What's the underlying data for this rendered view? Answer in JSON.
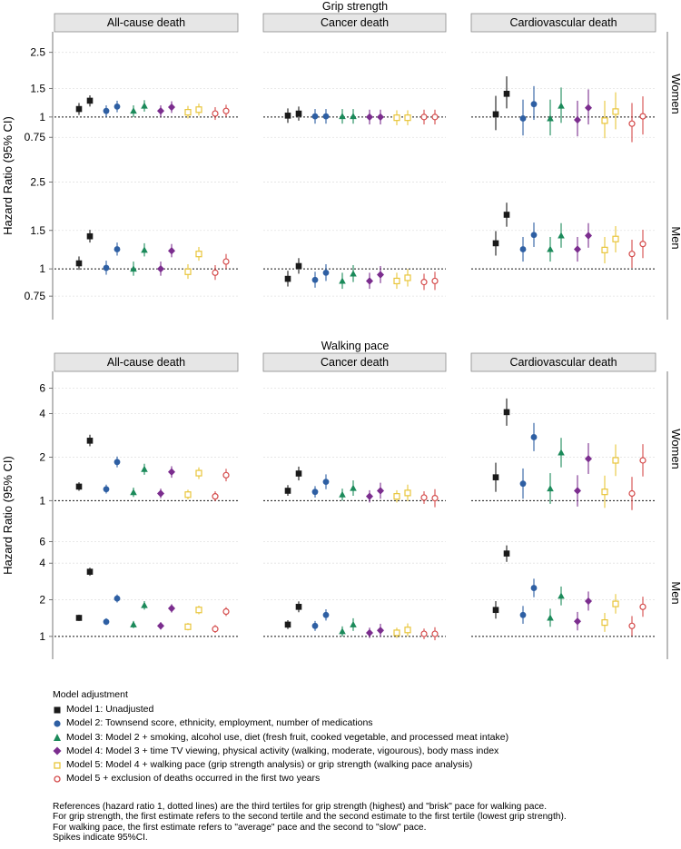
{
  "colors": {
    "model1": "#1a1a1a",
    "model2": "#2e5fa3",
    "model3": "#1b8a5a",
    "model4": "#7b2d8e",
    "model5": "#e8c53a",
    "model5b": "#d44a4a",
    "strip": "#e6e6e6",
    "grid": "#e2e2e2"
  },
  "chart_data": [
    {
      "type": "scatter",
      "title": "Grip strength",
      "ylabel": "Hazard Ratio (95% CI)",
      "yscale": "log",
      "ylim": [
        0.62,
        3.1
      ],
      "yticks": [
        0.75,
        1,
        1.5,
        2.5
      ],
      "ytick_labels": [
        "0.75",
        "1",
        "1.5",
        "2.5"
      ],
      "columns": [
        "All-cause death",
        "Cancer death",
        "Cardiovascular death"
      ],
      "rows": [
        "Women",
        "Men"
      ],
      "cells": [
        [
          [
            [
              1.12,
              1.03,
              1.22
            ],
            [
              1.26,
              1.16,
              1.36
            ],
            [
              1.09,
              1.0,
              1.18
            ],
            [
              1.16,
              1.07,
              1.26
            ],
            [
              1.09,
              1.0,
              1.18
            ],
            [
              1.17,
              1.08,
              1.27
            ],
            [
              1.09,
              1.0,
              1.18
            ],
            [
              1.15,
              1.06,
              1.25
            ],
            [
              1.07,
              0.98,
              1.17
            ],
            [
              1.11,
              1.02,
              1.21
            ],
            [
              1.05,
              0.96,
              1.15
            ],
            [
              1.09,
              1.0,
              1.19
            ]
          ],
          [
            [
              1.02,
              0.92,
              1.13
            ],
            [
              1.05,
              0.95,
              1.16
            ],
            [
              1.01,
              0.91,
              1.12
            ],
            [
              1.01,
              0.91,
              1.12
            ],
            [
              1.01,
              0.91,
              1.12
            ],
            [
              1.01,
              0.91,
              1.12
            ],
            [
              1.0,
              0.9,
              1.11
            ],
            [
              1.0,
              0.9,
              1.11
            ],
            [
              0.99,
              0.89,
              1.1
            ],
            [
              0.99,
              0.89,
              1.1
            ],
            [
              1.0,
              0.9,
              1.11
            ],
            [
              1.0,
              0.9,
              1.11
            ]
          ],
          [
            [
              1.04,
              0.83,
              1.35
            ],
            [
              1.39,
              1.13,
              1.78
            ],
            [
              0.98,
              0.77,
              1.28
            ],
            [
              1.2,
              0.96,
              1.55
            ],
            [
              0.98,
              0.77,
              1.28
            ],
            [
              1.17,
              0.92,
              1.52
            ],
            [
              0.96,
              0.76,
              1.26
            ],
            [
              1.14,
              0.9,
              1.48
            ],
            [
              0.95,
              0.74,
              1.26
            ],
            [
              1.08,
              0.84,
              1.42
            ],
            [
              0.91,
              0.7,
              1.22
            ],
            [
              1.01,
              0.78,
              1.34
            ]
          ]
        ],
        [
          [
            [
              1.06,
              0.99,
              1.14
            ],
            [
              1.41,
              1.32,
              1.51
            ],
            [
              1.01,
              0.94,
              1.09
            ],
            [
              1.23,
              1.15,
              1.32
            ],
            [
              1.0,
              0.93,
              1.08
            ],
            [
              1.22,
              1.14,
              1.31
            ],
            [
              1.0,
              0.93,
              1.08
            ],
            [
              1.21,
              1.13,
              1.3
            ],
            [
              0.97,
              0.9,
              1.05
            ],
            [
              1.17,
              1.09,
              1.26
            ],
            [
              0.96,
              0.89,
              1.04
            ],
            [
              1.08,
              1.0,
              1.17
            ]
          ],
          [
            [
              0.9,
              0.83,
              0.98
            ],
            [
              1.03,
              0.95,
              1.12
            ],
            [
              0.89,
              0.82,
              0.97
            ],
            [
              0.96,
              0.88,
              1.05
            ],
            [
              0.88,
              0.81,
              0.96
            ],
            [
              0.95,
              0.87,
              1.04
            ],
            [
              0.88,
              0.81,
              0.96
            ],
            [
              0.94,
              0.86,
              1.03
            ],
            [
              0.88,
              0.81,
              0.96
            ],
            [
              0.91,
              0.83,
              1.0
            ],
            [
              0.87,
              0.8,
              0.95
            ],
            [
              0.88,
              0.8,
              0.97
            ]
          ],
          [
            [
              1.31,
              1.15,
              1.49
            ],
            [
              1.77,
              1.56,
              2.01
            ],
            [
              1.23,
              1.08,
              1.4
            ],
            [
              1.43,
              1.26,
              1.63
            ],
            [
              1.23,
              1.08,
              1.4
            ],
            [
              1.42,
              1.25,
              1.62
            ],
            [
              1.23,
              1.08,
              1.4
            ],
            [
              1.42,
              1.25,
              1.62
            ],
            [
              1.22,
              1.06,
              1.4
            ],
            [
              1.37,
              1.19,
              1.57
            ],
            [
              1.17,
              1.01,
              1.36
            ],
            [
              1.3,
              1.12,
              1.51
            ]
          ]
        ]
      ]
    },
    {
      "type": "scatter",
      "title": "Walking pace",
      "ylabel": "Hazard Ratio (95% CI)",
      "yscale": "log",
      "ylim": [
        0.72,
        7.2
      ],
      "yticks": [
        1,
        2,
        4,
        6
      ],
      "ytick_labels": [
        "1",
        "2",
        "4",
        "6"
      ],
      "columns": [
        "All-cause death",
        "Cancer death",
        "Cardiovascular death"
      ],
      "rows": [
        "Women",
        "Men"
      ],
      "cells": [
        [
          [
            [
              1.25,
              1.17,
              1.34
            ],
            [
              2.6,
              2.38,
              2.86
            ],
            [
              1.2,
              1.12,
              1.29
            ],
            [
              1.85,
              1.7,
              2.02
            ],
            [
              1.14,
              1.06,
              1.23
            ],
            [
              1.65,
              1.51,
              1.8
            ],
            [
              1.12,
              1.04,
              1.21
            ],
            [
              1.58,
              1.44,
              1.73
            ],
            [
              1.1,
              1.02,
              1.19
            ],
            [
              1.55,
              1.41,
              1.7
            ],
            [
              1.07,
              0.99,
              1.16
            ],
            [
              1.5,
              1.36,
              1.66
            ]
          ],
          [
            [
              1.17,
              1.08,
              1.28
            ],
            [
              1.54,
              1.38,
              1.72
            ],
            [
              1.15,
              1.05,
              1.26
            ],
            [
              1.35,
              1.2,
              1.52
            ],
            [
              1.1,
              1.0,
              1.21
            ],
            [
              1.22,
              1.08,
              1.38
            ],
            [
              1.07,
              0.97,
              1.18
            ],
            [
              1.17,
              1.03,
              1.33
            ],
            [
              1.07,
              0.97,
              1.18
            ],
            [
              1.13,
              0.99,
              1.29
            ],
            [
              1.05,
              0.95,
              1.16
            ],
            [
              1.04,
              0.9,
              1.2
            ]
          ],
          [
            [
              1.45,
              1.15,
              1.83
            ],
            [
              4.1,
              3.3,
              5.1
            ],
            [
              1.31,
              1.03,
              1.67
            ],
            [
              2.75,
              2.2,
              3.45
            ],
            [
              1.21,
              0.95,
              1.55
            ],
            [
              2.15,
              1.7,
              2.72
            ],
            [
              1.17,
              0.91,
              1.5
            ],
            [
              1.95,
              1.53,
              2.5
            ],
            [
              1.15,
              0.89,
              1.49
            ],
            [
              1.9,
              1.48,
              2.45
            ],
            [
              1.12,
              0.86,
              1.46
            ],
            [
              1.9,
              1.47,
              2.46
            ]
          ]
        ],
        [
          [
            [
              1.42,
              1.34,
              1.51
            ],
            [
              3.4,
              3.15,
              3.67
            ],
            [
              1.32,
              1.24,
              1.41
            ],
            [
              2.05,
              1.9,
              2.21
            ],
            [
              1.25,
              1.17,
              1.34
            ],
            [
              1.8,
              1.66,
              1.95
            ],
            [
              1.22,
              1.14,
              1.31
            ],
            [
              1.7,
              1.57,
              1.84
            ],
            [
              1.2,
              1.12,
              1.29
            ],
            [
              1.65,
              1.52,
              1.79
            ],
            [
              1.15,
              1.07,
              1.24
            ],
            [
              1.6,
              1.47,
              1.74
            ]
          ],
          [
            [
              1.25,
              1.15,
              1.36
            ],
            [
              1.75,
              1.58,
              1.94
            ],
            [
              1.22,
              1.11,
              1.34
            ],
            [
              1.5,
              1.35,
              1.67
            ],
            [
              1.1,
              1.0,
              1.21
            ],
            [
              1.25,
              1.11,
              1.41
            ],
            [
              1.07,
              0.97,
              1.18
            ],
            [
              1.12,
              0.99,
              1.27
            ],
            [
              1.07,
              0.97,
              1.18
            ],
            [
              1.13,
              1.0,
              1.28
            ],
            [
              1.05,
              0.95,
              1.16
            ],
            [
              1.05,
              0.93,
              1.19
            ]
          ],
          [
            [
              1.65,
              1.4,
              1.95
            ],
            [
              4.8,
              4.1,
              5.6
            ],
            [
              1.5,
              1.27,
              1.78
            ],
            [
              2.5,
              2.1,
              2.98
            ],
            [
              1.42,
              1.2,
              1.69
            ],
            [
              2.15,
              1.8,
              2.57
            ],
            [
              1.33,
              1.12,
              1.59
            ],
            [
              1.95,
              1.63,
              2.34
            ],
            [
              1.3,
              1.09,
              1.56
            ],
            [
              1.85,
              1.54,
              2.23
            ],
            [
              1.22,
              1.01,
              1.47
            ],
            [
              1.75,
              1.45,
              2.12
            ]
          ]
        ]
      ]
    }
  ],
  "legend": {
    "title": "Model adjustment",
    "items": [
      "Model 1: Unadjusted",
      "Model 2: Townsend score, ethnicity, employment, number of medications",
      "Model 3: Model 2 + smoking, alcohol use, diet (fresh fruit, cooked vegetable, and processed meat intake)",
      "Model 4: Model 3 + time TV viewing, physical activity (walking, moderate, vigourous), body mass index",
      "Model 5: Model 4 + walking pace (grip strength analysis) or grip strength (walking pace analysis)",
      "Model 5 + exclusion of deaths occurred in the first two years"
    ]
  },
  "notes": [
    "References (hazard ratio 1, dotted lines) are the third tertiles for grip strength (highest) and \"brisk\" pace for walking pace.",
    "For grip strength, the first estimate refers to the second tertile and the second estimate to the first tertile (lowest grip strength).",
    "For walking pace, the first estimate refers to \"average\" pace and the second to \"slow\" pace.",
    "Spikes indicate 95%CI."
  ]
}
